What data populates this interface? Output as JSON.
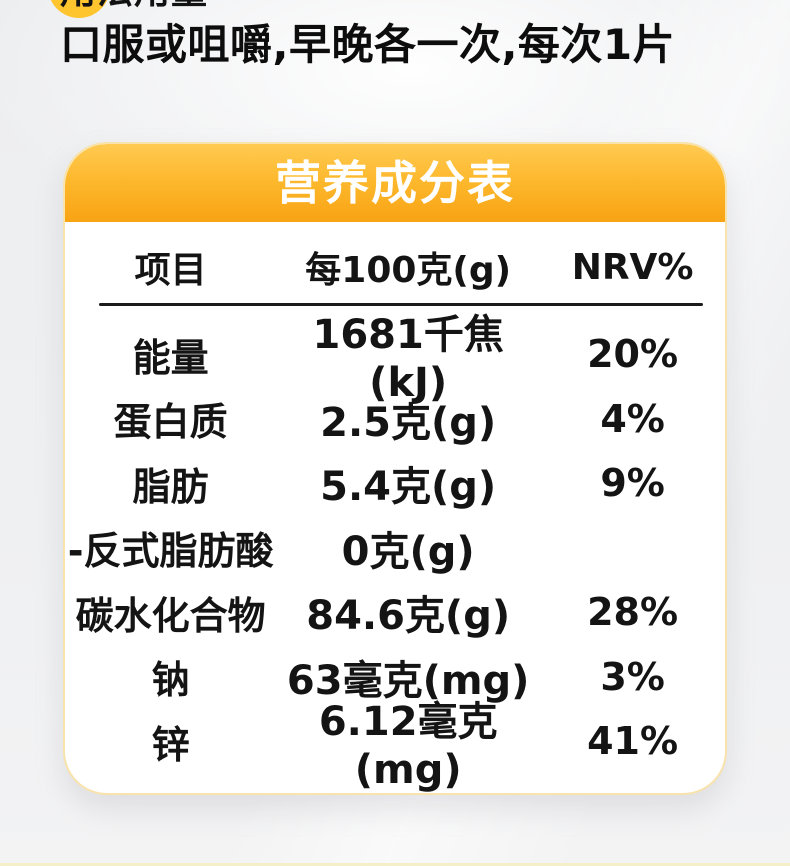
{
  "page": {
    "section_heading": "用法用量",
    "dosage_text": "口服或咀嚼,早晚各一次,每次1片"
  },
  "nutrition_card": {
    "title": "营养成分表",
    "columns": [
      "项目",
      "每100克(g)",
      "NRV%"
    ],
    "rows": [
      {
        "item": "能量",
        "per100g": "1681千焦(kJ)",
        "nrv": "20%"
      },
      {
        "item": "蛋白质",
        "per100g": "2.5克(g)",
        "nrv": "4%"
      },
      {
        "item": "脂肪",
        "per100g": "5.4克(g)",
        "nrv": "9%"
      },
      {
        "item": "-反式脂肪酸",
        "per100g": "0克(g)",
        "nrv": ""
      },
      {
        "item": "碳水化合物",
        "per100g": "84.6克(g)",
        "nrv": "28%"
      },
      {
        "item": "钠",
        "per100g": "63毫克(mg)",
        "nrv": "3%"
      },
      {
        "item": "锌",
        "per100g": "6.12毫克(mg)",
        "nrv": "41%"
      }
    ],
    "colors": {
      "header_gradient_top": "#FFCA52",
      "header_gradient_bottom": "#F8A313",
      "card_border": "#F8E3AC",
      "accent_circle": "#FFC52F",
      "background": "#EFF0F2",
      "title_text": "#FFFFFF",
      "table_text": "#141414"
    }
  }
}
